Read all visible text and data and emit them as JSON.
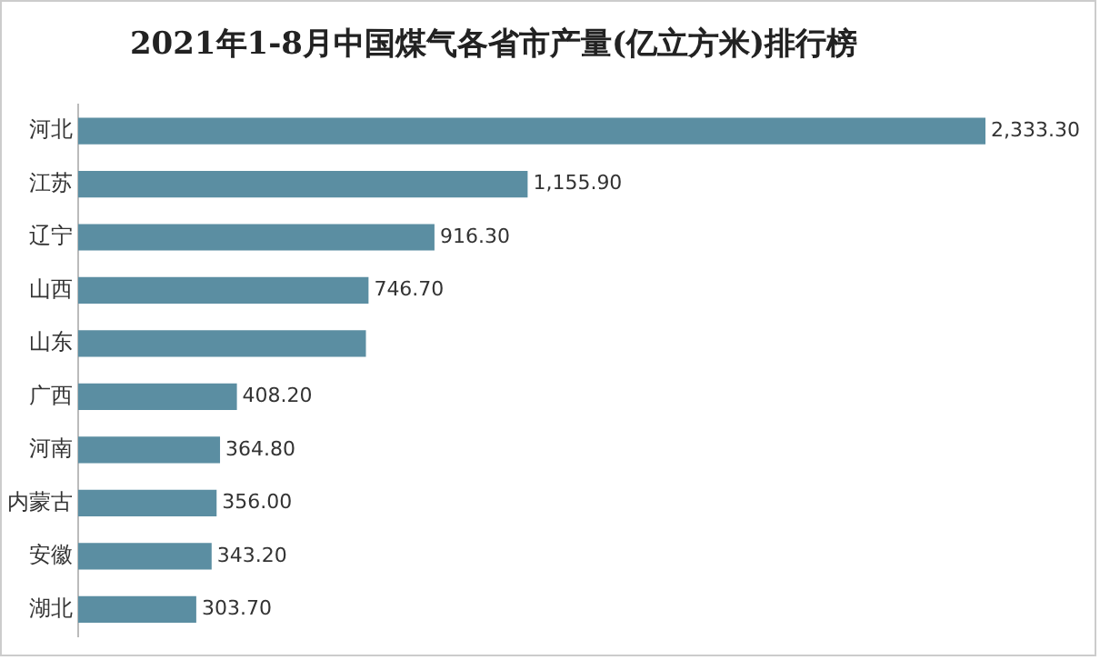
{
  "chart_data": {
    "type": "bar",
    "orientation": "horizontal",
    "title": "2021年1-8月中国煤气各省市产量(亿立方米)排行榜",
    "categories": [
      "河北",
      "江苏",
      "辽宁",
      "山西",
      "山东",
      "广西",
      "河南",
      "内蒙古",
      "安徽",
      "湖北"
    ],
    "values": [
      2333.3,
      1155.9,
      916.3,
      746.7,
      740,
      408.2,
      364.8,
      356.0,
      343.2,
      303.7
    ],
    "value_labels": [
      "2,333.30",
      "1,155.90",
      "916.30",
      "746.70",
      null,
      "408.20",
      "364.80",
      "356.00",
      "343.20",
      "303.70"
    ],
    "color": "#5b8ea2",
    "xlim": [
      0,
      2333.3
    ],
    "legend": false,
    "tick_labels": "y"
  }
}
